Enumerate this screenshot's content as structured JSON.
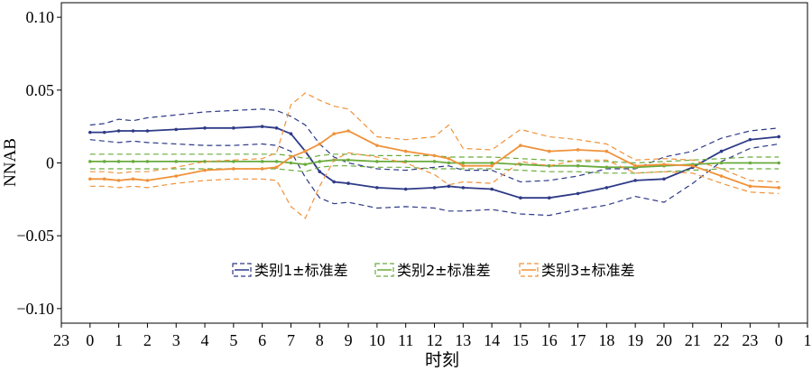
{
  "chart_data": {
    "type": "line",
    "xlabel": "时刻",
    "ylabel": "NNAB",
    "xlim": [
      -1,
      25
    ],
    "ylim": [
      -0.11,
      0.11
    ],
    "x_ticks": [
      -1,
      0,
      1,
      2,
      3,
      4,
      5,
      6,
      7,
      8,
      9,
      10,
      11,
      12,
      13,
      14,
      15,
      16,
      17,
      18,
      19,
      20,
      21,
      22,
      23,
      24,
      25
    ],
    "x_tick_labels": [
      "23",
      "0",
      "1",
      "2",
      "3",
      "4",
      "5",
      "6",
      "7",
      "8",
      "9",
      "10",
      "11",
      "12",
      "13",
      "14",
      "15",
      "16",
      "17",
      "18",
      "19",
      "20",
      "21",
      "22",
      "23",
      "0",
      "1"
    ],
    "y_ticks": [
      0.1,
      0.05,
      0,
      -0.05,
      -0.1
    ],
    "y_tick_labels": [
      "0.10",
      "0.05",
      "0",
      "−0.05",
      "−0.10"
    ],
    "grid": false,
    "legend_position": "lower-center",
    "x": [
      0,
      0.5,
      1,
      1.5,
      2,
      3,
      4,
      5,
      6,
      6.5,
      7,
      7.5,
      8,
      8.5,
      9,
      10,
      11,
      12,
      12.5,
      13,
      14,
      15,
      16,
      17,
      18,
      19,
      20,
      21,
      22,
      23,
      24
    ],
    "series": [
      {
        "name": "类别1±标准差",
        "color": "#2e3a87",
        "mean": [
          0.021,
          0.021,
          0.022,
          0.022,
          0.022,
          0.023,
          0.024,
          0.024,
          0.025,
          0.024,
          0.02,
          0.008,
          -0.006,
          -0.013,
          -0.014,
          -0.017,
          -0.018,
          -0.017,
          -0.016,
          -0.017,
          -0.018,
          -0.024,
          -0.024,
          -0.021,
          -0.017,
          -0.012,
          -0.011,
          -0.003,
          0.008,
          0.016,
          0.018
        ],
        "upper": [
          0.026,
          0.027,
          0.03,
          0.029,
          0.031,
          0.033,
          0.035,
          0.036,
          0.037,
          0.036,
          0.032,
          0.026,
          0.013,
          0.004,
          0.0,
          -0.004,
          -0.005,
          -0.003,
          -0.002,
          -0.005,
          -0.005,
          -0.013,
          -0.012,
          -0.009,
          -0.004,
          -0.004,
          0.004,
          0.008,
          0.017,
          0.022,
          0.024
        ],
        "lower": [
          0.016,
          0.015,
          0.014,
          0.015,
          0.014,
          0.013,
          0.012,
          0.012,
          0.013,
          0.012,
          0.008,
          -0.01,
          -0.024,
          -0.028,
          -0.027,
          -0.031,
          -0.03,
          -0.031,
          -0.033,
          -0.033,
          -0.032,
          -0.035,
          -0.036,
          -0.032,
          -0.029,
          -0.023,
          -0.027,
          -0.014,
          0.001,
          0.01,
          0.013
        ]
      },
      {
        "name": "类别2±标准差",
        "color": "#6aab3c",
        "mean": [
          0.001,
          0.001,
          0.001,
          0.001,
          0.001,
          0.001,
          0.001,
          0.001,
          0.001,
          0.001,
          0.0,
          -0.001,
          0.001,
          0.002,
          0.002,
          0.001,
          0.001,
          0.001,
          0.0,
          0.0,
          0.0,
          -0.001,
          -0.002,
          -0.002,
          -0.003,
          -0.003,
          -0.002,
          -0.001,
          0.0,
          0.0,
          0.0
        ],
        "upper": [
          0.006,
          0.006,
          0.006,
          0.006,
          0.006,
          0.006,
          0.006,
          0.006,
          0.006,
          0.006,
          0.005,
          0.003,
          0.005,
          0.006,
          0.006,
          0.005,
          0.005,
          0.005,
          0.004,
          0.004,
          0.004,
          0.003,
          0.002,
          0.001,
          0.001,
          0.0,
          0.001,
          0.002,
          0.003,
          0.004,
          0.004
        ],
        "lower": [
          -0.004,
          -0.004,
          -0.004,
          -0.004,
          -0.004,
          -0.004,
          -0.004,
          -0.004,
          -0.004,
          -0.004,
          -0.005,
          -0.006,
          -0.003,
          -0.002,
          -0.002,
          -0.003,
          -0.003,
          -0.004,
          -0.004,
          -0.004,
          -0.004,
          -0.005,
          -0.006,
          -0.006,
          -0.007,
          -0.007,
          -0.006,
          -0.005,
          -0.004,
          -0.004,
          -0.004
        ]
      },
      {
        "name": "类别3±标准差",
        "color": "#f0923a",
        "mean": [
          -0.011,
          -0.011,
          -0.012,
          -0.011,
          -0.012,
          -0.009,
          -0.005,
          -0.004,
          -0.004,
          -0.003,
          0.004,
          0.008,
          0.013,
          0.02,
          0.022,
          0.012,
          0.008,
          0.005,
          0.003,
          -0.002,
          -0.002,
          0.012,
          0.008,
          0.009,
          0.008,
          -0.002,
          -0.001,
          -0.002,
          -0.009,
          -0.016,
          -0.017
        ],
        "upper": [
          -0.006,
          -0.006,
          -0.007,
          -0.006,
          -0.006,
          -0.003,
          0.001,
          0.002,
          0.003,
          0.007,
          0.04,
          0.048,
          0.043,
          0.039,
          0.037,
          0.018,
          0.016,
          0.018,
          0.026,
          0.01,
          0.009,
          0.023,
          0.018,
          0.016,
          0.013,
          0.002,
          0.003,
          0.002,
          -0.004,
          -0.012,
          -0.013
        ],
        "lower": [
          -0.016,
          -0.016,
          -0.017,
          -0.016,
          -0.017,
          -0.014,
          -0.012,
          -0.011,
          -0.011,
          -0.012,
          -0.03,
          -0.038,
          -0.016,
          0.002,
          0.007,
          0.004,
          0.0,
          -0.008,
          -0.015,
          -0.013,
          -0.014,
          0.001,
          -0.002,
          0.002,
          0.002,
          -0.007,
          -0.006,
          -0.007,
          -0.014,
          -0.02,
          -0.021
        ]
      }
    ]
  }
}
